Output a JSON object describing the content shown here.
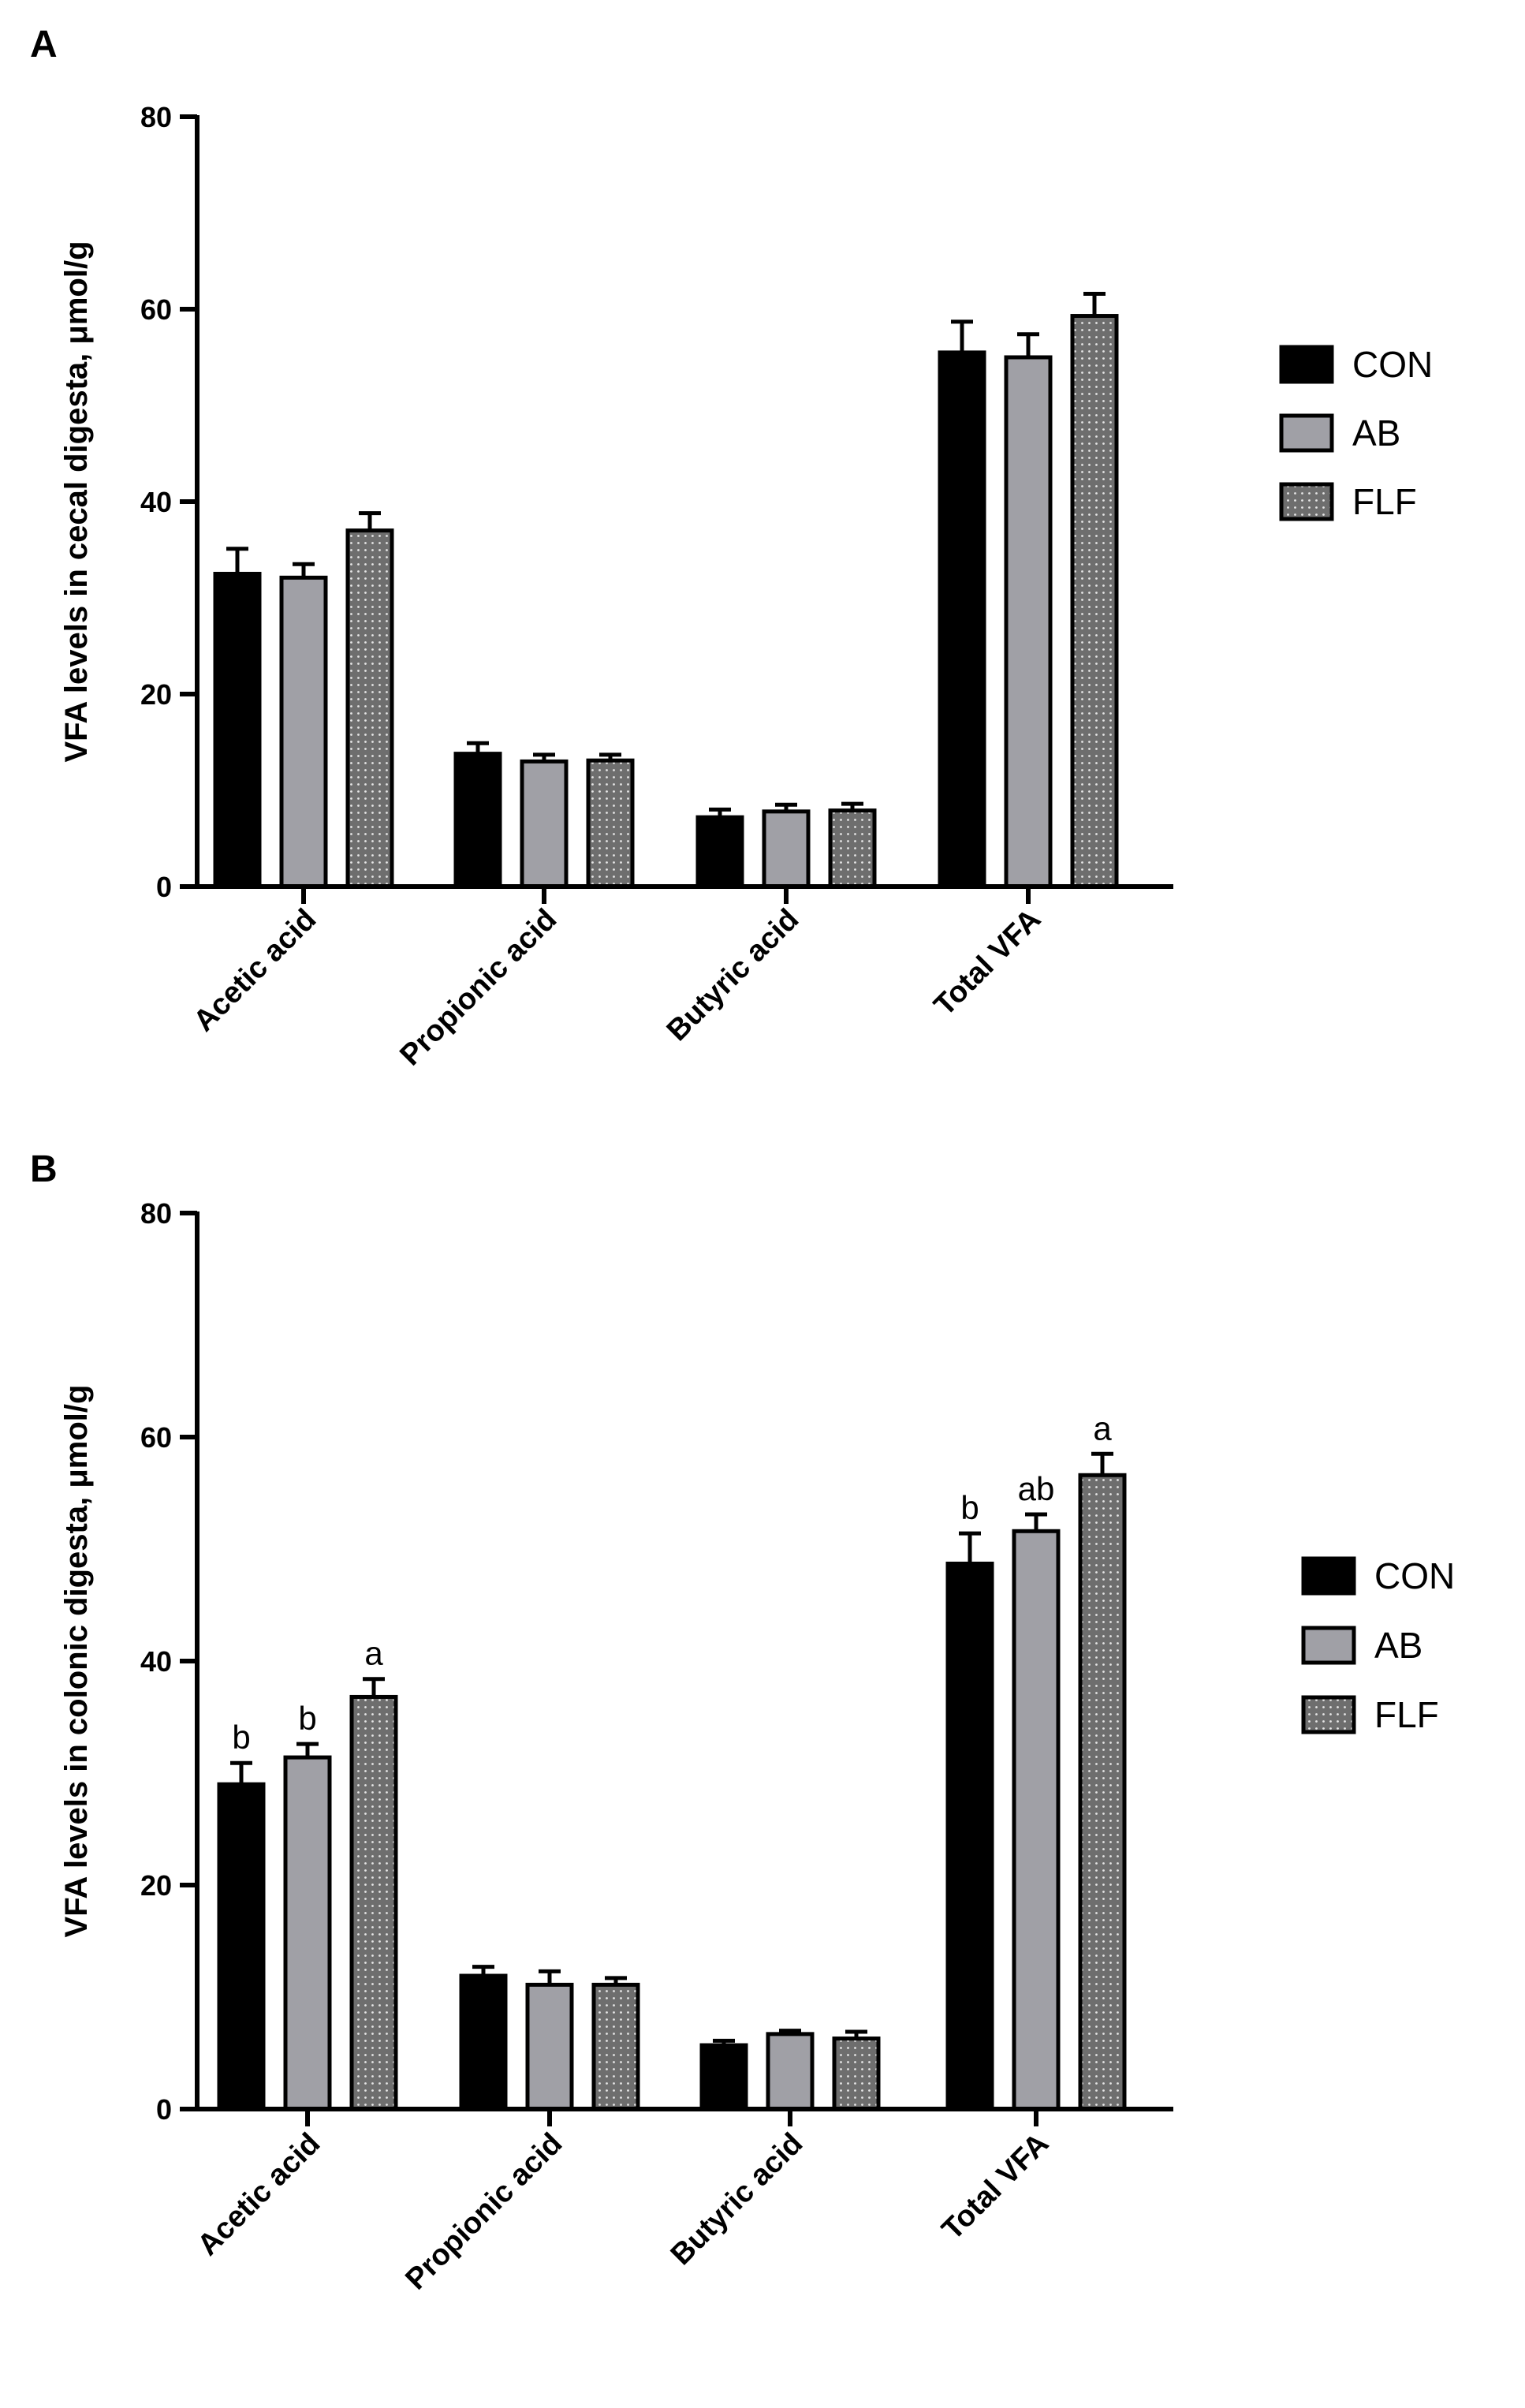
{
  "colors": {
    "CON": "#000000",
    "AB": "#a0a0a6",
    "FLF": "#6e6e6e",
    "dots": "#e6e6e6",
    "axis": "#000000"
  },
  "chart_data": [
    {
      "type": "bar",
      "panel_label": "A",
      "ylabel": "VFA levels in cecal digesta, μmol/g",
      "xlabel": "",
      "ylim": [
        0,
        80
      ],
      "yticks": [
        0,
        20,
        40,
        60,
        80
      ],
      "categories": [
        "Acetic acid",
        "Propionic acid",
        "Butyric acid",
        "Total VFA"
      ],
      "legend": [
        "CON",
        "AB",
        "FLF"
      ],
      "series": [
        {
          "name": "CON",
          "values": [
            32.5,
            13.8,
            7.2,
            55.5
          ],
          "errors": [
            2.6,
            1.1,
            0.8,
            3.2
          ],
          "labels": [
            "",
            "",
            "",
            ""
          ]
        },
        {
          "name": "AB",
          "values": [
            32.1,
            13.0,
            7.8,
            55.0
          ],
          "errors": [
            1.4,
            0.7,
            0.7,
            2.4
          ],
          "labels": [
            "",
            "",
            "",
            ""
          ]
        },
        {
          "name": "FLF",
          "values": [
            37.0,
            13.1,
            7.9,
            59.3
          ],
          "errors": [
            1.8,
            0.6,
            0.7,
            2.3
          ],
          "labels": [
            "",
            "",
            "",
            ""
          ]
        }
      ]
    },
    {
      "type": "bar",
      "panel_label": "B",
      "ylabel": "VFA levels in colonic digesta, μmol/g",
      "xlabel": "",
      "ylim": [
        0,
        80
      ],
      "yticks": [
        0,
        20,
        40,
        60,
        80
      ],
      "categories": [
        "Acetic acid",
        "Propionic acid",
        "Butyric acid",
        "Total VFA"
      ],
      "legend": [
        "CON",
        "AB",
        "FLF"
      ],
      "series": [
        {
          "name": "CON",
          "values": [
            29.0,
            11.9,
            5.7,
            48.7
          ],
          "errors": [
            1.9,
            0.8,
            0.4,
            2.7
          ],
          "labels": [
            "b",
            "",
            "",
            "b"
          ]
        },
        {
          "name": "AB",
          "values": [
            31.4,
            11.1,
            6.7,
            51.6
          ],
          "errors": [
            1.2,
            1.2,
            0.3,
            1.5
          ],
          "labels": [
            "b",
            "",
            "",
            "ab"
          ]
        },
        {
          "name": "FLF",
          "values": [
            36.8,
            11.1,
            6.3,
            56.6
          ],
          "errors": [
            1.6,
            0.6,
            0.6,
            1.9
          ],
          "labels": [
            "a",
            "",
            "",
            "a"
          ]
        }
      ]
    }
  ]
}
